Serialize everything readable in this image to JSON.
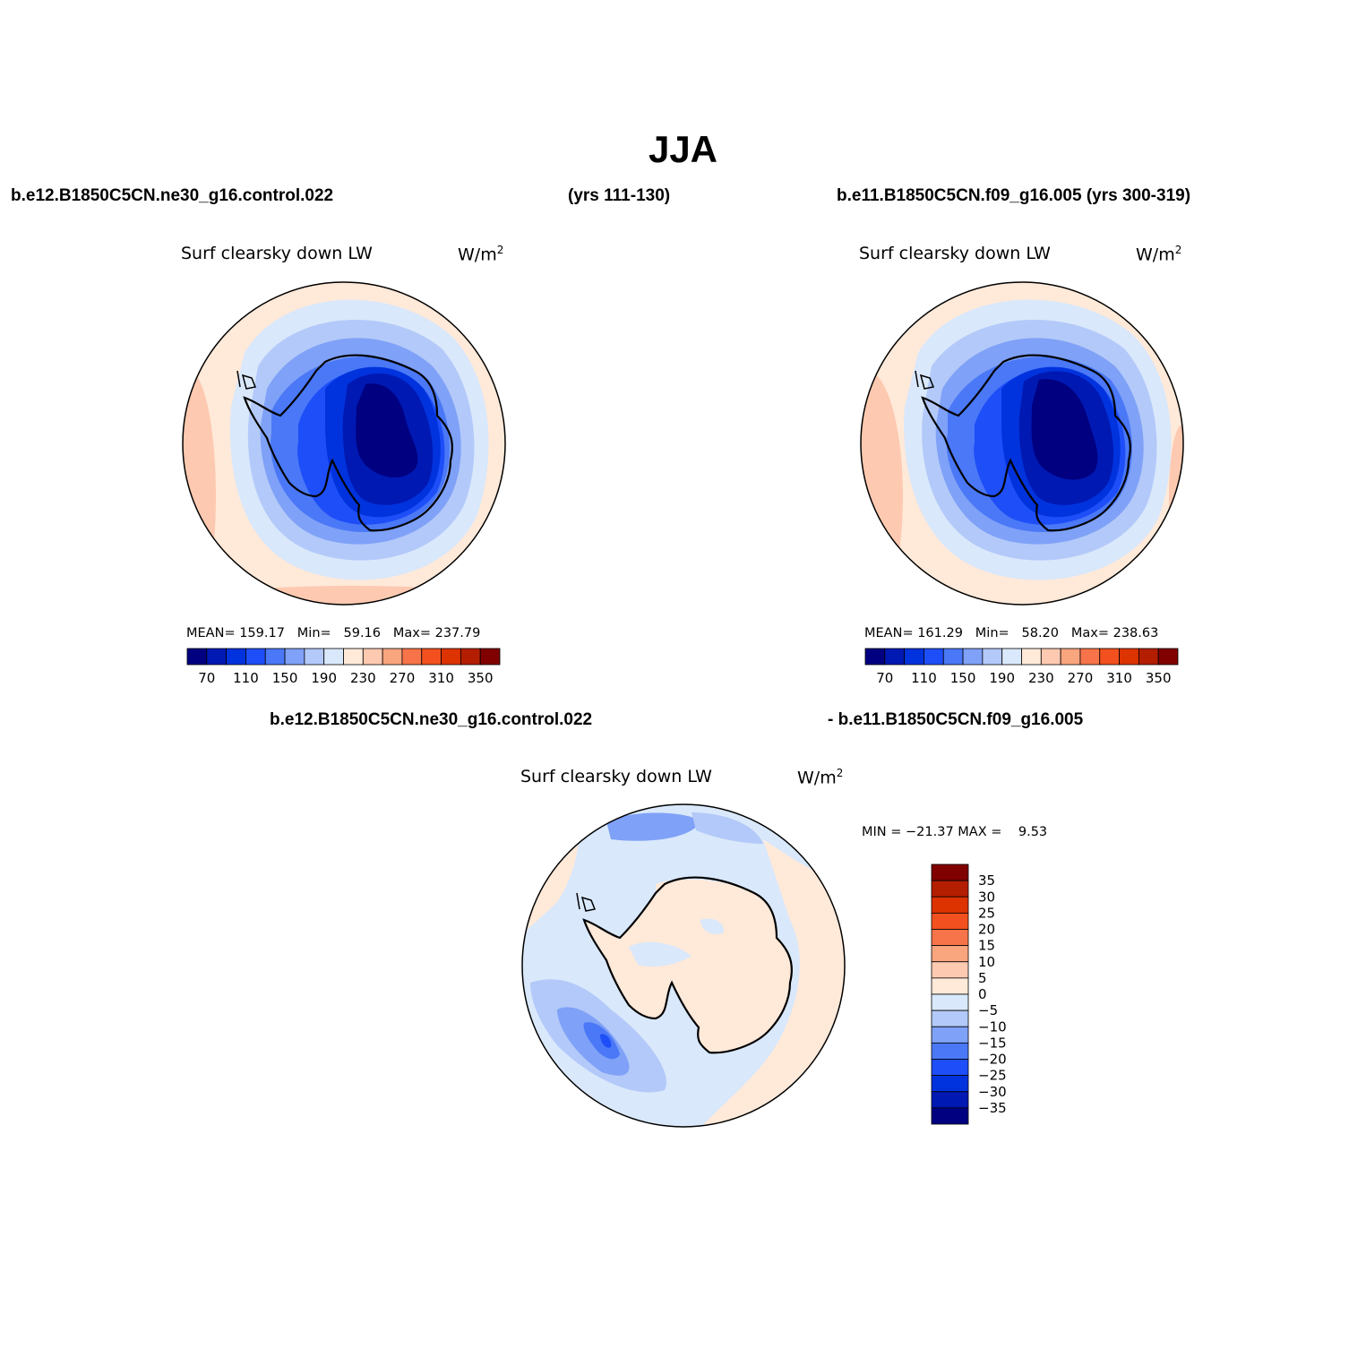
{
  "header": {
    "season": "JJA",
    "case1_label": "b.e12.B1850C5CN.ne30_g16.control.022",
    "case1_years": "(yrs 111-130)",
    "case2_label": "b.e11.B1850C5CN.f09_g16.005 (yrs 300-319)",
    "diff_label_a": "b.e12.B1850C5CN.ne30_g16.control.022",
    "diff_label_b": "- b.e11.B1850C5CN.f09_g16.005"
  },
  "panels": [
    {
      "id": "case1",
      "variable": "Surf clearsky down LW",
      "units": "W/m",
      "units_sup": "2",
      "stats": {
        "mean_label": "MEAN=",
        "mean": "159.17",
        "min_label": "Min=",
        "min": "59.16",
        "max_label": "Max=",
        "max": "237.79"
      }
    },
    {
      "id": "case2",
      "variable": "Surf clearsky down LW",
      "units": "W/m",
      "units_sup": "2",
      "stats": {
        "mean_label": "MEAN=",
        "mean": "161.29",
        "min_label": "Min=",
        "min": "58.20",
        "max_label": "Max=",
        "max": "238.63"
      }
    },
    {
      "id": "diff",
      "variable": "Surf clearsky down LW",
      "units": "W/m",
      "units_sup": "2",
      "stats": {
        "min_label": "MIN =",
        "min": "−21.37",
        "max_label": "MAX =",
        "max": "9.53"
      }
    }
  ],
  "colorbar_abs": {
    "colors": [
      "#000080",
      "#0019b3",
      "#0033dd",
      "#1e4ef7",
      "#4a78f7",
      "#7fa1f7",
      "#b3c9f9",
      "#d9e8fb",
      "#ffe9d9",
      "#fdc9b0",
      "#f9a57e",
      "#f7744a",
      "#f2501e",
      "#dd3300",
      "#b31e00",
      "#800000"
    ],
    "tick_labels": [
      "70",
      "110",
      "150",
      "190",
      "230",
      "270",
      "310",
      "350"
    ]
  },
  "colorbar_diff": {
    "colors": [
      "#800000",
      "#b31e00",
      "#dd3300",
      "#f2501e",
      "#f7744a",
      "#f9a57e",
      "#fdc9b0",
      "#ffe9d9",
      "#d9e8fb",
      "#b3c9f9",
      "#7fa1f7",
      "#4a78f7",
      "#1e4ef7",
      "#0033dd",
      "#0019b3",
      "#000080"
    ],
    "tick_labels": [
      "35",
      "30",
      "25",
      "20",
      "15",
      "10",
      "5",
      "0",
      "−5",
      "−10",
      "−15",
      "−20",
      "−25",
      "−30",
      "−35"
    ]
  }
}
